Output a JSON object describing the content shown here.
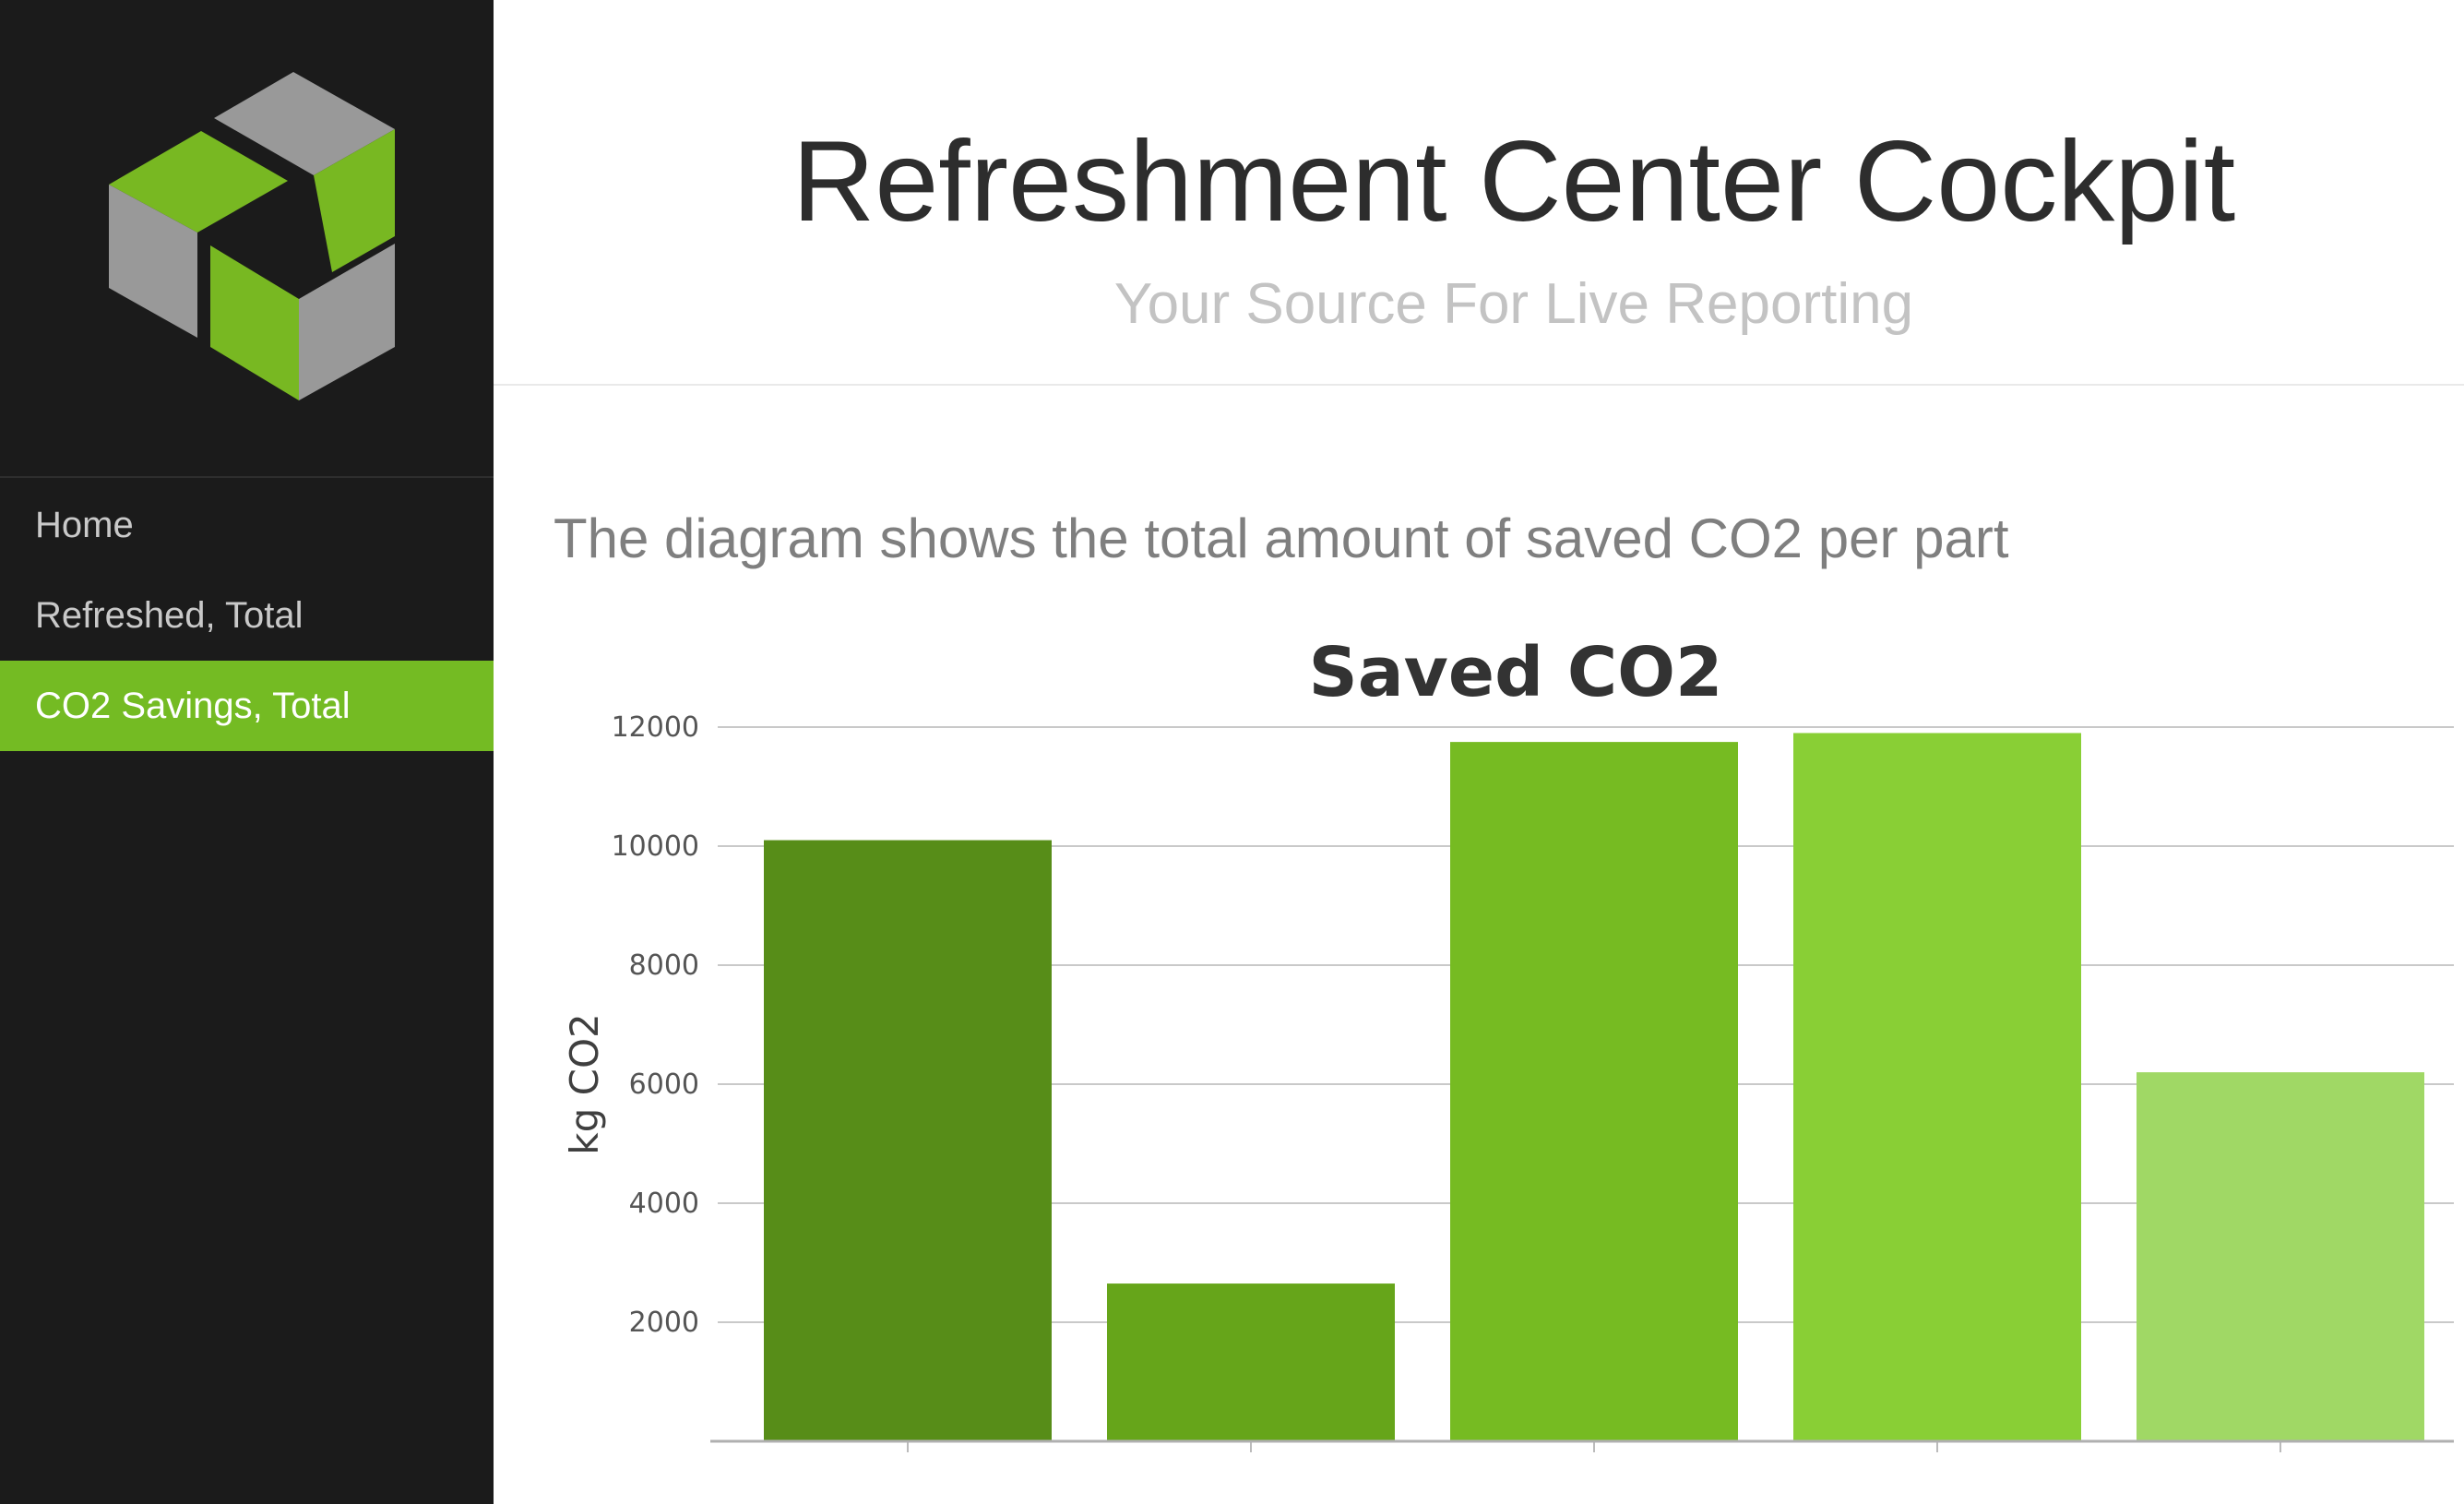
{
  "sidebar": {
    "logo_icon": "cube-logo-icon",
    "nav": [
      {
        "label": "Home",
        "active": false
      },
      {
        "label": "Refreshed, Total",
        "active": false
      },
      {
        "label": "CO2 Savings, Total",
        "active": true
      }
    ]
  },
  "header": {
    "title": "Refreshment Center Cockpit",
    "subtitle": "Your Source For Live Reporting"
  },
  "main": {
    "description": "The diagram shows the total amount of saved CO2 per part"
  },
  "colors": {
    "accent": "#74bb23",
    "sidebar_bg": "#1b1b1b",
    "bar_colors": [
      "#578d18",
      "#66a51a",
      "#76bb22",
      "#89cf35",
      "#a0d865"
    ]
  },
  "chart_data": {
    "type": "bar",
    "title": "Saved CO2",
    "ylabel": "kg CO2",
    "xlabel": "",
    "categories": [
      "",
      "",
      "",
      "",
      ""
    ],
    "values": [
      10100,
      2650,
      11750,
      11900,
      6200
    ],
    "ylim": [
      0,
      12000
    ],
    "yticks": [
      2000,
      4000,
      6000,
      8000,
      10000,
      12000
    ],
    "grid": true
  }
}
